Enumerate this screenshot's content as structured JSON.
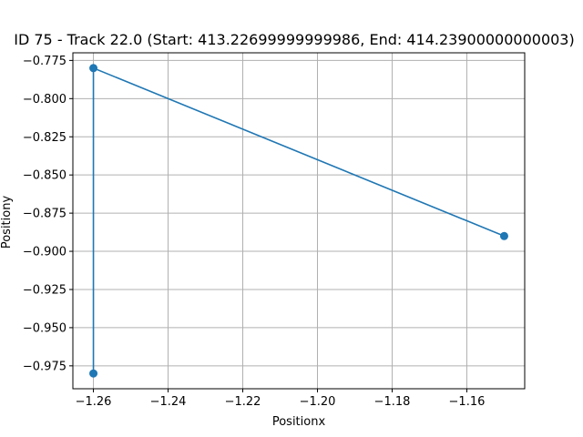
{
  "chart_data": {
    "type": "line",
    "title": "ID 75 - Track 22.0 (Start: 413.22699999999986, End: 414.23900000000003)",
    "xlabel": "Positionx",
    "ylabel": "Positiony",
    "xlim": [
      -1.2655,
      -1.1445
    ],
    "ylim": [
      -0.99,
      -0.77
    ],
    "xticks": [
      -1.26,
      -1.24,
      -1.22,
      -1.2,
      -1.18,
      -1.16
    ],
    "xtick_labels": [
      "−1.26",
      "−1.24",
      "−1.22",
      "−1.20",
      "−1.18",
      "−1.16"
    ],
    "yticks": [
      -0.775,
      -0.8,
      -0.825,
      -0.85,
      -0.875,
      -0.9,
      -0.925,
      -0.95,
      -0.975
    ],
    "ytick_labels": [
      "−0.775",
      "−0.800",
      "−0.825",
      "−0.850",
      "−0.875",
      "−0.900",
      "−0.925",
      "−0.950",
      "−0.975"
    ],
    "grid": true,
    "series": [
      {
        "color": "#1f77b4",
        "x": [
          -1.15,
          -1.26,
          -1.26
        ],
        "y": [
          -0.89,
          -0.78,
          -0.98
        ]
      }
    ]
  }
}
